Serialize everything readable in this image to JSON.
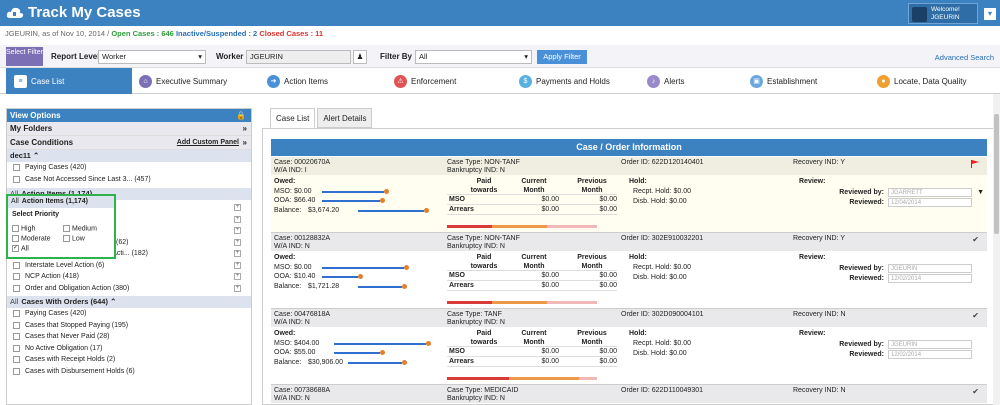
{
  "app": {
    "title": "Track My Cases",
    "welcome": "Welcome!",
    "user": "JGEURIN"
  },
  "status": {
    "prefix": "JGEURIN, as of Nov 10, 2014 /",
    "open": "Open Cases : 646",
    "inactive": "Inactive/Suspended : 2",
    "closed": "Closed Cases : 11",
    "colors": {
      "open": "#2e9e3a",
      "inactive": "#2a6fb5",
      "closed": "#d9342b"
    }
  },
  "filter": {
    "select_filter": "Select Filter",
    "report_level_label": "Report Level",
    "report_level_value": "Worker",
    "worker_label": "Worker",
    "worker_value": "JGEURIN",
    "filter_by_label": "Filter By",
    "filter_by_value": "All",
    "apply": "Apply Filter",
    "advanced": "Advanced Search"
  },
  "nav": [
    {
      "label": "Case List",
      "icon": "list-icon",
      "color": "#3c82c0"
    },
    {
      "label": "Executive Summary",
      "icon": "home-icon",
      "color": "#7c6fb5"
    },
    {
      "label": "Action Items",
      "icon": "arrow-right-icon",
      "color": "#4a90d9"
    },
    {
      "label": "Enforcement",
      "icon": "enforcement-icon",
      "color": "#e05353"
    },
    {
      "label": "Payments and Holds",
      "icon": "payment-icon",
      "color": "#5ab0e0"
    },
    {
      "label": "Alerts",
      "icon": "bell-icon",
      "color": "#9a8ac9"
    },
    {
      "label": "Establishment",
      "icon": "establishment-icon",
      "color": "#6aa6e0"
    },
    {
      "label": "Locate, Data Quality",
      "icon": "locate-icon",
      "color": "#f0a030"
    }
  ],
  "sidebar": {
    "view_options": "View Options",
    "my_folders": "My Folders",
    "case_conditions": "Case Conditions",
    "add_custom_panel": "Add Custom Panel",
    "dec11": "dec11",
    "dec11_items": [
      "Paying Cases (420)",
      "Case Not Accessed Since Last 3... (457)"
    ],
    "action_items_all": "All",
    "action_items": "Action Items (1,174)",
    "action_items_list": [
      "(62)",
      "Enforcement/Establishment Acti... (182)",
      "Interstate Level Action (6)",
      "NCP Action (418)",
      "Order and Obligation Action (380)"
    ],
    "with_orders_all": "All",
    "with_orders": "Cases With Orders (644)",
    "with_orders_list": [
      "Paying Cases (420)",
      "Cases that Stopped Paying (195)",
      "Cases that Never Paid (28)",
      "No Active Obligation (17)",
      "Cases with Receipt Holds (2)",
      "Cases with Disbursement Holds (6)"
    ],
    "priority": {
      "title": "Select Priority",
      "high": "High",
      "medium": "Medium",
      "moderate": "Moderate",
      "low": "Low",
      "all": "All"
    }
  },
  "tabs": [
    "Case List",
    "Alert Details"
  ],
  "panel_title": "Case / Order Information",
  "labels": {
    "case": "Case:",
    "wa": "W/A IND:",
    "ctype": "Case Type:",
    "bank": "Bankruptcy IND:",
    "order": "Order ID:",
    "recov": "Recovery IND:",
    "owed": "Owed:",
    "mso": "MSO:",
    "ooa": "OOA:",
    "balance": "Balance:",
    "paid": "Paid towards",
    "current": "Current Month",
    "previous": "Previous Month",
    "mso_row": "MSO",
    "arrears_row": "Arrears",
    "hold": "Hold:",
    "rcpt": "Recpt. Hold:",
    "disb": "Disb. Hold:",
    "review": "Review:",
    "reviewed_by": "Reviewed by:",
    "reviewed": "Reviewed:"
  },
  "cases": [
    {
      "case": "00020670A",
      "wa": "I",
      "type": "NON-TANF",
      "bank": "N",
      "order": "622D120140401",
      "recov": "Y",
      "mso": "$0.00",
      "ooa": "$66.40",
      "balance": "$3,674.20",
      "mso_cur": "$0.00",
      "mso_prev": "$0.00",
      "arr_cur": "$0.00",
      "arr_prev": "$0.00",
      "rcpt": "$0.00",
      "disb": "$0.00",
      "reviewer": "JGARRETT",
      "reviewed": "12/04/2014",
      "flag": "red-flag-icon"
    },
    {
      "case": "00128832A",
      "wa": "N",
      "type": "NON-TANF",
      "bank": "N",
      "order": "302E910032201",
      "recov": "Y",
      "mso": "$0.00",
      "ooa": "$10.40",
      "balance": "$1,721.28",
      "mso_cur": "$0.00",
      "mso_prev": "$0.00",
      "arr_cur": "$0.00",
      "arr_prev": "$0.00",
      "rcpt": "$0.00",
      "disb": "$0.00",
      "reviewer": "JGEURIN",
      "reviewed": "12/02/2014",
      "flag": "check-icon"
    },
    {
      "case": "00476818A",
      "wa": "N",
      "type": "TANF",
      "bank": "N",
      "order": "302D090004101",
      "recov": "N",
      "mso": "$404.00",
      "ooa": "$55.00",
      "balance": "$30,906.00",
      "mso_cur": "$0.00",
      "mso_prev": "$0.00",
      "arr_cur": "$0.00",
      "arr_prev": "$0.00",
      "rcpt": "$0.00",
      "disb": "$0.00",
      "reviewer": "JGEURIN",
      "reviewed": "12/02/2014",
      "flag": "check-icon"
    },
    {
      "case": "00738688A",
      "wa": "N",
      "type": "MEDICAID",
      "bank": "N",
      "order": "622D110049301",
      "recov": "N",
      "flag": "check-icon"
    }
  ]
}
